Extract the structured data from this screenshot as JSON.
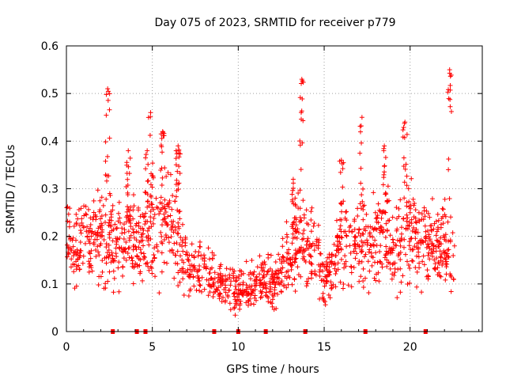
{
  "chart_data": {
    "type": "scatter",
    "title": "Day 075 of 2023, SRMTID for receiver p779",
    "xlabel": "GPS time / hours",
    "ylabel": "SRMTID / TECUs",
    "xlim": [
      0,
      24.2
    ],
    "ylim": [
      0,
      0.6
    ],
    "x_ticks": [
      {
        "value": 0,
        "label": "0"
      },
      {
        "value": 5,
        "label": "5"
      },
      {
        "value": 10,
        "label": "10"
      },
      {
        "value": 15,
        "label": "15"
      },
      {
        "value": 20,
        "label": "20"
      }
    ],
    "y_ticks": [
      {
        "value": 0,
        "label": "0"
      },
      {
        "value": 0.1,
        "label": "0.1"
      },
      {
        "value": 0.2,
        "label": "0.2"
      },
      {
        "value": 0.3,
        "label": "0.3"
      },
      {
        "value": 0.4,
        "label": "0.4"
      },
      {
        "value": 0.5,
        "label": "0.5"
      },
      {
        "value": 0.6,
        "label": "0.6"
      }
    ],
    "grid": true,
    "marker": "+",
    "color": "#ff0000",
    "envelope": [
      [
        0.0,
        0.22,
        0.06
      ],
      [
        0.5,
        0.17,
        0.07
      ],
      [
        1.0,
        0.2,
        0.09
      ],
      [
        1.5,
        0.19,
        0.08
      ],
      [
        2.0,
        0.2,
        0.08
      ],
      [
        2.5,
        0.19,
        0.09
      ],
      [
        3.0,
        0.18,
        0.08
      ],
      [
        3.5,
        0.19,
        0.08
      ],
      [
        4.0,
        0.2,
        0.08
      ],
      [
        4.5,
        0.18,
        0.08
      ],
      [
        5.0,
        0.2,
        0.1
      ],
      [
        5.5,
        0.22,
        0.1
      ],
      [
        6.0,
        0.22,
        0.09
      ],
      [
        6.5,
        0.2,
        0.09
      ],
      [
        7.0,
        0.14,
        0.06
      ],
      [
        7.5,
        0.13,
        0.05
      ],
      [
        8.0,
        0.12,
        0.05
      ],
      [
        8.5,
        0.11,
        0.05
      ],
      [
        9.0,
        0.1,
        0.04
      ],
      [
        9.5,
        0.09,
        0.04
      ],
      [
        10.0,
        0.08,
        0.04
      ],
      [
        10.5,
        0.09,
        0.04
      ],
      [
        11.0,
        0.1,
        0.04
      ],
      [
        11.5,
        0.11,
        0.04
      ],
      [
        12.0,
        0.1,
        0.04
      ],
      [
        12.5,
        0.13,
        0.05
      ],
      [
        13.0,
        0.16,
        0.07
      ],
      [
        13.5,
        0.19,
        0.08
      ],
      [
        14.0,
        0.16,
        0.07
      ],
      [
        14.5,
        0.17,
        0.08
      ],
      [
        15.0,
        0.11,
        0.05
      ],
      [
        15.5,
        0.14,
        0.06
      ],
      [
        16.0,
        0.18,
        0.07
      ],
      [
        16.5,
        0.18,
        0.07
      ],
      [
        17.0,
        0.18,
        0.08
      ],
      [
        17.5,
        0.19,
        0.08
      ],
      [
        18.0,
        0.19,
        0.08
      ],
      [
        18.5,
        0.21,
        0.08
      ],
      [
        19.0,
        0.19,
        0.08
      ],
      [
        19.5,
        0.2,
        0.09
      ],
      [
        20.0,
        0.21,
        0.09
      ],
      [
        20.5,
        0.2,
        0.09
      ],
      [
        21.0,
        0.19,
        0.09
      ],
      [
        21.5,
        0.18,
        0.08
      ],
      [
        22.0,
        0.17,
        0.08
      ],
      [
        22.5,
        0.15,
        0.07
      ]
    ],
    "peaks": [
      {
        "x": 2.4,
        "y": 0.51
      },
      {
        "x": 3.6,
        "y": 0.38
      },
      {
        "x": 4.7,
        "y": 0.38
      },
      {
        "x": 4.9,
        "y": 0.46
      },
      {
        "x": 5.6,
        "y": 0.42
      },
      {
        "x": 6.5,
        "y": 0.39
      },
      {
        "x": 13.7,
        "y": 0.53
      },
      {
        "x": 13.2,
        "y": 0.32
      },
      {
        "x": 16.0,
        "y": 0.36
      },
      {
        "x": 17.2,
        "y": 0.45
      },
      {
        "x": 18.5,
        "y": 0.39
      },
      {
        "x": 19.7,
        "y": 0.44
      },
      {
        "x": 22.3,
        "y": 0.55
      }
    ],
    "zero_markers": [
      2.7,
      4.1,
      4.6,
      8.6,
      10.0,
      11.6,
      13.9,
      17.4,
      20.9
    ]
  }
}
